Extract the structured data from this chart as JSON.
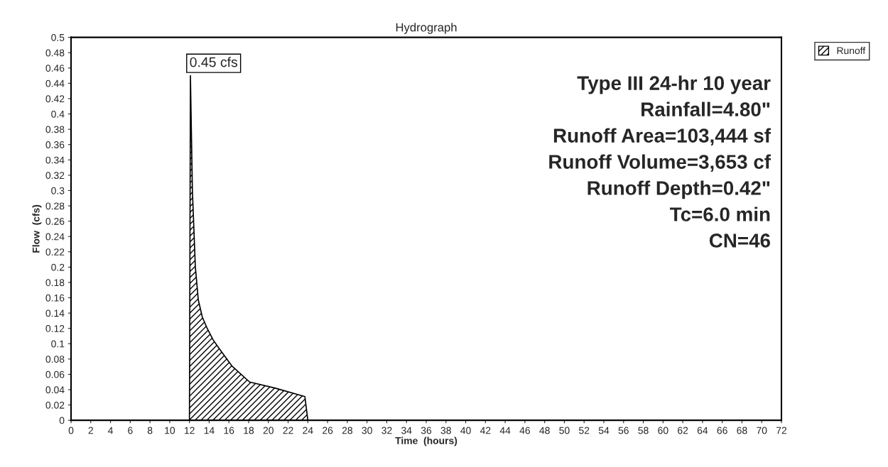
{
  "chart_data": {
    "type": "area",
    "title": "Hydrograph",
    "xlabel": "Time  (hours)",
    "ylabel": "Flow  (cfs)",
    "x": [
      0,
      12,
      12.1,
      12.3,
      12.6,
      12.9,
      13.3,
      13.8,
      14.4,
      15.0,
      16.3,
      18.1,
      20.7,
      23.7,
      24.0,
      72
    ],
    "series": [
      {
        "name": "Runoff",
        "color": "#000000",
        "values": [
          0,
          0,
          0.45,
          0.3,
          0.2,
          0.157,
          0.135,
          0.12,
          0.105,
          0.094,
          0.071,
          0.05,
          0.042,
          0.031,
          0,
          0
        ]
      }
    ],
    "xlim": [
      0,
      72
    ],
    "ylim": [
      0,
      0.5
    ],
    "xticks": [
      0,
      2,
      4,
      6,
      8,
      10,
      12,
      14,
      16,
      18,
      20,
      22,
      24,
      26,
      28,
      30,
      32,
      34,
      36,
      38,
      40,
      42,
      44,
      46,
      48,
      50,
      52,
      54,
      56,
      58,
      60,
      62,
      64,
      66,
      68,
      70,
      72
    ],
    "yticks": [
      0,
      0.02,
      0.04,
      0.06,
      0.08,
      0.1,
      0.12,
      0.14,
      0.16,
      0.18,
      0.2,
      0.22,
      0.24,
      0.26,
      0.28,
      0.3,
      0.32,
      0.34,
      0.36,
      0.38,
      0.4,
      0.42,
      0.44,
      0.46,
      0.48,
      0.5
    ],
    "annotations": [
      {
        "text": "0.45 cfs",
        "x": 12,
        "y": 0.45
      },
      "Type III 24-hr 10 year",
      "Rainfall=4.80\"",
      "Runoff Area=103,444 sf",
      "Runoff Volume=3,653 cf",
      "Runoff Depth=0.42\"",
      "Tc=6.0 min",
      "CN=46"
    ],
    "legend": "top right",
    "grid": false
  }
}
